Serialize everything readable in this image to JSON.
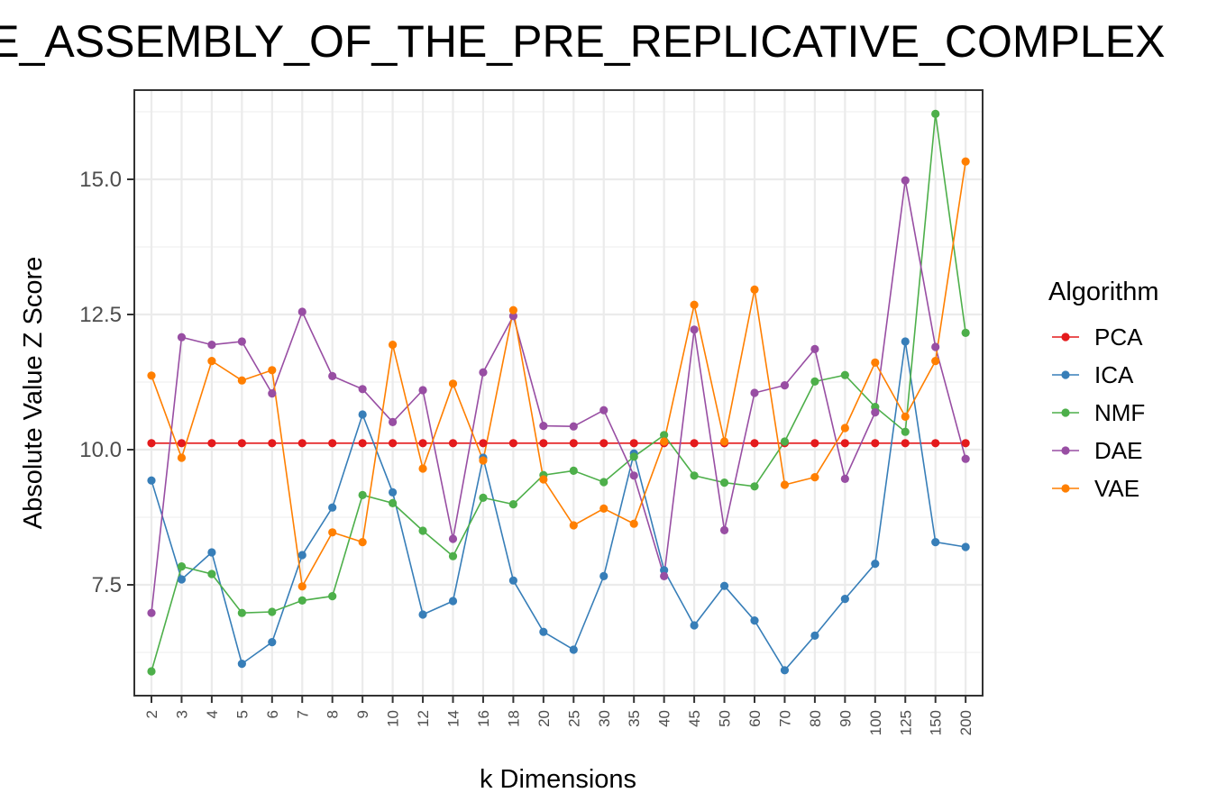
{
  "chart_data": {
    "type": "line",
    "title": "ME_ASSEMBLY_OF_THE_PRE_REPLICATIVE_COMPLEX",
    "xlabel": "k Dimensions",
    "ylabel": "Absolute Value Z Score",
    "categories": [
      "2",
      "3",
      "4",
      "5",
      "6",
      "7",
      "8",
      "9",
      "10",
      "12",
      "14",
      "16",
      "18",
      "20",
      "25",
      "30",
      "35",
      "40",
      "45",
      "50",
      "60",
      "70",
      "80",
      "90",
      "100",
      "125",
      "150",
      "200"
    ],
    "ylim": [
      5.45,
      16.65
    ],
    "yticks": [
      7.5,
      10.0,
      12.5,
      15.0
    ],
    "ytick_labels": [
      "7.5",
      "10.0",
      "12.5",
      "15.0"
    ],
    "grid": true,
    "legend": {
      "title": "Algorithm",
      "position": "right"
    },
    "series": [
      {
        "name": "PCA",
        "color": "#e41a1c",
        "values": [
          10.12,
          10.12,
          10.12,
          10.12,
          10.12,
          10.12,
          10.12,
          10.12,
          10.12,
          10.12,
          10.12,
          10.12,
          10.12,
          10.12,
          10.12,
          10.12,
          10.12,
          10.12,
          10.12,
          10.12,
          10.12,
          10.12,
          10.12,
          10.12,
          10.12,
          10.12,
          10.12,
          10.12
        ]
      },
      {
        "name": "ICA",
        "color": "#377eb8",
        "values": [
          9.43,
          7.6,
          8.1,
          6.04,
          6.44,
          8.05,
          8.93,
          10.65,
          9.21,
          6.95,
          7.2,
          9.85,
          7.58,
          6.63,
          6.3,
          7.66,
          9.93,
          7.77,
          6.75,
          7.48,
          6.84,
          5.92,
          6.56,
          7.24,
          7.89,
          12.0,
          8.29,
          8.2
        ]
      },
      {
        "name": "NMF",
        "color": "#4daf4a",
        "values": [
          5.9,
          7.84,
          7.7,
          6.98,
          7.0,
          7.21,
          7.29,
          9.16,
          9.01,
          8.5,
          8.03,
          9.11,
          8.99,
          9.53,
          9.61,
          9.4,
          9.87,
          10.27,
          9.52,
          9.39,
          9.32,
          10.15,
          11.26,
          11.38,
          10.79,
          10.33,
          16.21,
          12.16
        ]
      },
      {
        "name": "DAE",
        "color": "#984ea3",
        "values": [
          6.98,
          12.08,
          11.94,
          12.0,
          11.04,
          12.55,
          11.36,
          11.12,
          10.51,
          11.1,
          8.35,
          11.43,
          12.47,
          10.44,
          10.43,
          10.73,
          9.52,
          7.66,
          12.22,
          8.51,
          11.05,
          11.19,
          11.86,
          9.46,
          10.69,
          14.98,
          11.9,
          9.83
        ]
      },
      {
        "name": "VAE",
        "color": "#ff7f00",
        "values": [
          11.37,
          9.85,
          11.64,
          11.28,
          11.47,
          7.47,
          8.47,
          8.29,
          11.94,
          9.65,
          11.22,
          9.8,
          12.58,
          9.45,
          8.6,
          8.91,
          8.63,
          10.15,
          12.68,
          10.15,
          12.96,
          9.35,
          9.49,
          10.4,
          11.61,
          10.61,
          11.64,
          15.33
        ]
      }
    ]
  }
}
